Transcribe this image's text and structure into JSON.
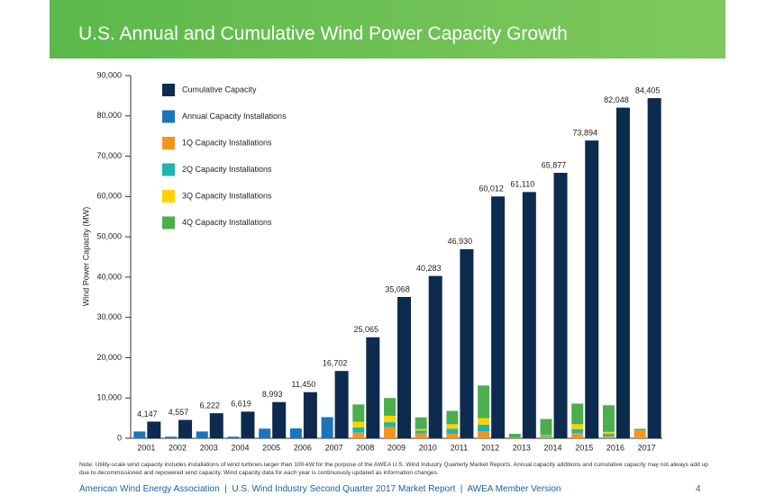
{
  "chart_data": {
    "type": "bar",
    "title": "U.S. Annual and Cumulative Wind Power Capacity Growth",
    "y_label": "Wind Power Capacity (MW)",
    "categories": [
      "2001",
      "2002",
      "2003",
      "2004",
      "2005",
      "2006",
      "2007",
      "2008",
      "2009",
      "2010",
      "2011",
      "2012",
      "2013",
      "2014",
      "2015",
      "2016",
      "2017"
    ],
    "series": [
      {
        "name": "Cumulative Capacity",
        "color": "#0d2b4e",
        "group": "cumulative",
        "values": [
          4147,
          4557,
          6222,
          6619,
          8993,
          11450,
          16702,
          25065,
          35068,
          40283,
          46930,
          60012,
          61110,
          65877,
          73894,
          82048,
          84405
        ],
        "value_labels": [
          "4,147",
          "4,557",
          "6,222",
          "6,619",
          "8,993",
          "11,450",
          "16,702",
          "25,065",
          "35,068",
          "40,283",
          "46,930",
          "60,012",
          "61,110",
          "65,877",
          "73,894",
          "82,048",
          "84,405"
        ]
      },
      {
        "name": "Annual Capacity Installations",
        "color": "#1b75bc",
        "group": "annual",
        "values": [
          1700,
          400,
          1700,
          400,
          2400,
          2450,
          5250,
          null,
          null,
          null,
          null,
          null,
          null,
          null,
          null,
          null,
          null
        ]
      },
      {
        "name": "1Q Capacity Installations",
        "color": "#f7941d",
        "group": "annual",
        "values": [
          null,
          null,
          null,
          null,
          null,
          null,
          null,
          1400,
          2800,
          1200,
          1100,
          1700,
          0,
          300,
          1300,
          500,
          2000
        ]
      },
      {
        "name": "2Q Capacity Installations",
        "color": "#1fb5ad",
        "group": "annual",
        "values": [
          null,
          null,
          null,
          null,
          null,
          null,
          null,
          1300,
          1200,
          700,
          1300,
          1700,
          0,
          300,
          1000,
          600,
          350
        ]
      },
      {
        "name": "3Q Capacity Installations",
        "color": "#ffd200",
        "group": "annual",
        "values": [
          null,
          null,
          null,
          null,
          null,
          null,
          null,
          1400,
          1600,
          400,
          1100,
          1600,
          100,
          200,
          1200,
          500,
          null
        ]
      },
      {
        "name": "4Q Capacity Installations",
        "color": "#4bae4f",
        "group": "annual",
        "values": [
          null,
          null,
          null,
          null,
          null,
          null,
          null,
          4300,
          4400,
          2900,
          3300,
          8100,
          1000,
          4000,
          5100,
          6600,
          null
        ]
      }
    ],
    "ylim": [
      0,
      90000
    ],
    "yticks": [
      0,
      {
        "value": 10000,
        "label": "10,000"
      },
      {
        "value": 20000,
        "label": "20,000"
      },
      {
        "value": 30000,
        "label": "30,000"
      },
      {
        "value": 40000,
        "label": "40,000"
      },
      {
        "value": 50000,
        "label": "50,000"
      },
      {
        "value": 60000,
        "label": "60,000"
      },
      {
        "value": 70000,
        "label": "70,000"
      },
      {
        "value": 80000,
        "label": "80,000"
      },
      {
        "value": 90000,
        "label": "90,000"
      }
    ],
    "legend": "top-left",
    "note": "Note: Utility-scale wind capacity includes installations of wind turbines larger than 100-kW for the purpose of the AWEA U.S. Wind Industry Quarterly Market Reports. Annual capacity additions and cumulative capacity may not always add up due to decommissioned and repowered wind capacity. Wind capacity data for each year is continuously updated as information changes.",
    "footer": "American Wind Energy Association  |  U.S. Wind Industry Second Quarter 2017 Market Report  |  AWEA Member Version",
    "page_number": "4"
  }
}
